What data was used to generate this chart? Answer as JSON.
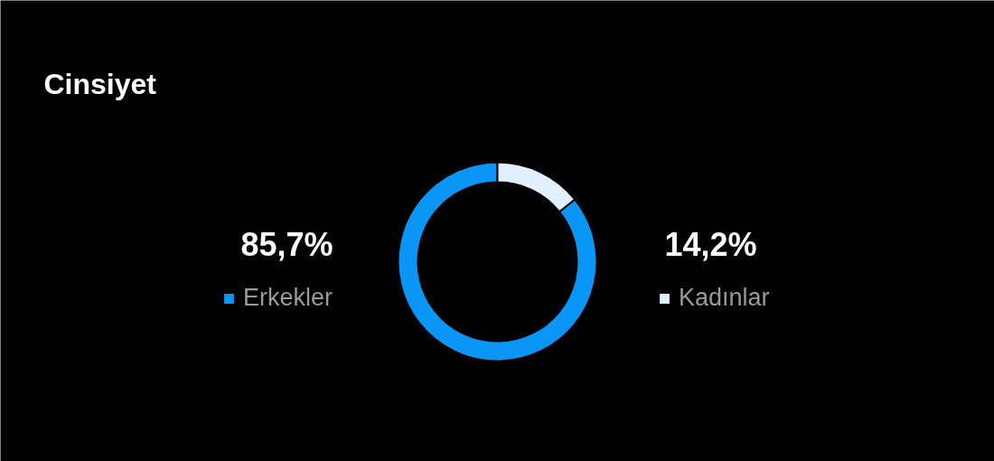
{
  "chart_data": {
    "type": "donut",
    "title": "Cinsiyet",
    "categories": [
      "Erkekler",
      "Kadınlar"
    ],
    "values": [
      85.7,
      14.2
    ],
    "value_labels": [
      "85,7%",
      "14,2%"
    ],
    "colors": [
      "#0a96f7",
      "#e0f0ff"
    ],
    "legend": "left"
  }
}
